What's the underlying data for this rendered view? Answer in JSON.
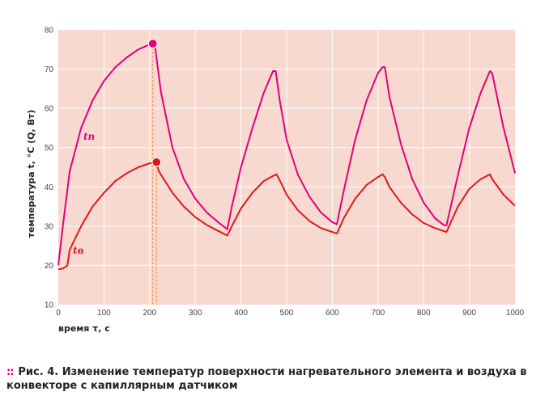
{
  "chart_data": {
    "type": "line",
    "xlabel": "время τ, с",
    "ylabel": "температура t, °С (Q, Вт)",
    "xlim": [
      0,
      1000
    ],
    "ylim": [
      10,
      80
    ],
    "xticks": [
      0,
      100,
      200,
      300,
      400,
      500,
      600,
      700,
      800,
      900,
      1000
    ],
    "yticks": [
      10,
      20,
      30,
      40,
      50,
      60,
      70,
      80
    ],
    "grid": true,
    "background": "#f7d9cf",
    "gridColor": "#ffffff",
    "series": [
      {
        "name": "tп",
        "color": "#e2007a",
        "points": [
          [
            0,
            20
          ],
          [
            10,
            30
          ],
          [
            25,
            44
          ],
          [
            50,
            55
          ],
          [
            75,
            62
          ],
          [
            100,
            67
          ],
          [
            125,
            70.5
          ],
          [
            150,
            73
          ],
          [
            175,
            75
          ],
          [
            200,
            76.3
          ],
          [
            207,
            76.5
          ],
          [
            212,
            75.5
          ],
          [
            225,
            64
          ],
          [
            250,
            50
          ],
          [
            275,
            42
          ],
          [
            300,
            37
          ],
          [
            325,
            33.5
          ],
          [
            350,
            31
          ],
          [
            370,
            29.2
          ],
          [
            380,
            35
          ],
          [
            400,
            45
          ],
          [
            425,
            55
          ],
          [
            450,
            64
          ],
          [
            470,
            69.5
          ],
          [
            476,
            69.5
          ],
          [
            485,
            62
          ],
          [
            500,
            52
          ],
          [
            525,
            43
          ],
          [
            550,
            37.5
          ],
          [
            575,
            33.5
          ],
          [
            600,
            31
          ],
          [
            610,
            30.5
          ],
          [
            625,
            39
          ],
          [
            650,
            52
          ],
          [
            675,
            62
          ],
          [
            700,
            69
          ],
          [
            710,
            70.5
          ],
          [
            715,
            70.5
          ],
          [
            725,
            63
          ],
          [
            750,
            51
          ],
          [
            775,
            42
          ],
          [
            800,
            36
          ],
          [
            825,
            32
          ],
          [
            845,
            30.2
          ],
          [
            850,
            30.2
          ],
          [
            875,
            43
          ],
          [
            900,
            55
          ],
          [
            925,
            64
          ],
          [
            945,
            69.5
          ],
          [
            950,
            69
          ],
          [
            975,
            55
          ],
          [
            1000,
            43.5
          ]
        ]
      },
      {
        "name": "tв",
        "color": "#e0181b",
        "points": [
          [
            0,
            19
          ],
          [
            10,
            19.2
          ],
          [
            20,
            20
          ],
          [
            25,
            24
          ],
          [
            50,
            30
          ],
          [
            75,
            35
          ],
          [
            100,
            38.5
          ],
          [
            125,
            41.5
          ],
          [
            150,
            43.5
          ],
          [
            175,
            45
          ],
          [
            200,
            46
          ],
          [
            215,
            46.3
          ],
          [
            220,
            44
          ],
          [
            250,
            38.5
          ],
          [
            275,
            35
          ],
          [
            300,
            32.3
          ],
          [
            325,
            30.3
          ],
          [
            350,
            28.8
          ],
          [
            370,
            27.6
          ],
          [
            380,
            30
          ],
          [
            400,
            34.5
          ],
          [
            425,
            38.5
          ],
          [
            450,
            41.5
          ],
          [
            470,
            42.8
          ],
          [
            478,
            43.2
          ],
          [
            490,
            40.5
          ],
          [
            500,
            38
          ],
          [
            525,
            34
          ],
          [
            550,
            31.3
          ],
          [
            575,
            29.5
          ],
          [
            600,
            28.5
          ],
          [
            610,
            28.1
          ],
          [
            625,
            32
          ],
          [
            650,
            37
          ],
          [
            675,
            40.5
          ],
          [
            700,
            42.5
          ],
          [
            710,
            43.2
          ],
          [
            715,
            42.5
          ],
          [
            725,
            40
          ],
          [
            750,
            36
          ],
          [
            775,
            33
          ],
          [
            800,
            30.8
          ],
          [
            825,
            29.5
          ],
          [
            845,
            28.7
          ],
          [
            850,
            28.5
          ],
          [
            875,
            35
          ],
          [
            900,
            39.5
          ],
          [
            925,
            42
          ],
          [
            945,
            43.2
          ],
          [
            950,
            42
          ],
          [
            975,
            38
          ],
          [
            1000,
            35.2
          ]
        ]
      }
    ],
    "markers": [
      {
        "x": 207,
        "y": 76.5,
        "color": "#e2007a",
        "drop": "#f28a3a"
      },
      {
        "x": 215,
        "y": 46.3,
        "color": "#e0181b",
        "drop": "#f28a3a"
      }
    ],
    "seriesLabels": [
      {
        "text": "tп",
        "x": 55,
        "y": 52,
        "color": "#e2007a"
      },
      {
        "text": "tв",
        "x": 32,
        "y": 23,
        "color": "#e0181b"
      }
    ]
  },
  "caption": {
    "bullet": "::",
    "fig": "Рис. 4.",
    "text": " Изменение температур поверхности нагревательного элемента и воздуха в конвекторе с капиллярным датчиком"
  }
}
